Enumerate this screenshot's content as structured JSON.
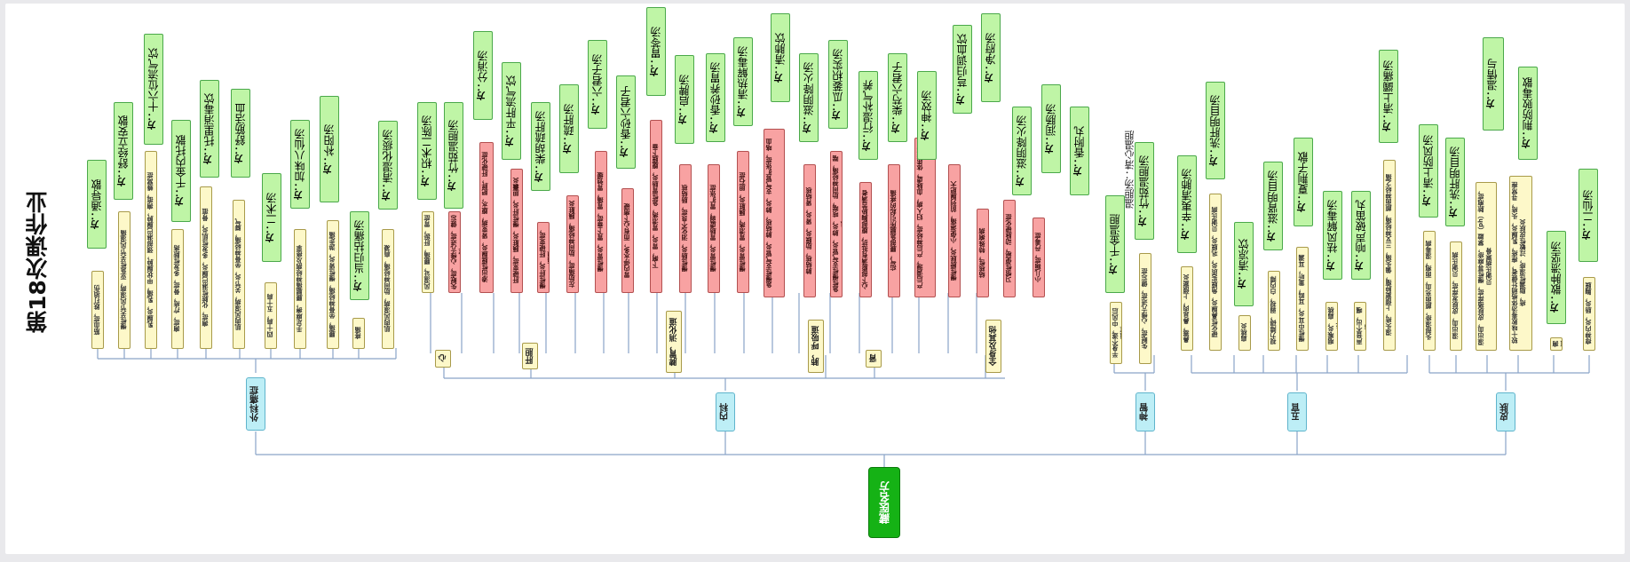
{
  "title": "第18次课作业",
  "root": "藏医名方",
  "colors": {
    "green": "#bff5a6",
    "yellow": "#fdf8c9",
    "red": "#f8a2a2",
    "blue": "#bdeef6",
    "root": "#15b215"
  },
  "categories": [
    "外科痛症",
    "内科",
    "神智",
    "五官",
    "皮肤"
  ],
  "note": "温胆汤：清心温胆",
  "yellow": [
    "筋血症，跌打损伤",
    "慢性关节风湿病，亚急性关节风湿痛",
    "乳腺炎，乳痛，甲状腺肿，颈部淋巴腺肿，痈疽，蜂窝症",
    "痈症，疔疮，骨症，多发性脓疡",
    "痈症，化脓性淋巴腺炎，多发性肌炎，骨疽",
    "肌肉风湿病，关节炎，坐骨神经痛，脚气",
    "四十肩，五十肩",
    "手足麻痹，腰腿痛神经病及痉挛",
    "腰痛，坐骨神经痛，慢性肾炎，游走痛",
    "疼痛",
    "肌肉风湿病，肋间神经痛，肩凝",
    "风湿证，腰痛，肝瘀，胃症",
    "失眠症，心悸亢进症，健忘症",
    "半身不遂，中风后遗症",
    "失眠症，心悸亢进症，健忘症",
    "鼻塞，鼻息肉，上颌窦炎",
    "硬化性鼻腺炎，角膜实质炎，巩膜炎，贝谢氏病",
    "扁桃炎",
    "视力障碍，弱视，白内障",
    "慢性中耳炎，耳鸣，重听，耳漏",
    "咽喉炎，扁桃炎",
    "声音不出，嘎声",
    "湿头疮，上颌窦肿瘤，偏头痛，三叉神经痛，颜面神经之痛",
    "头部湿疹，颜面充血，面疱，湿毒病",
    "湿出血，皮肤发痒症，贝谢氏病",
    "湿出血，皮肤搔痒症，慢性荨麻疹，掌蹠（ph）脓疱症，贝谢氏病寒骨",
    "较十味败毒汤体格稍壮健者，痤疮，乳腺炎，头疮，寻常痤疮，脂漏性湿疹，过敏性皮肤炎",
    "痈疽",
    "痱神内炎，肠炎，胸膜"
  ],
  "red": [
    "渗出性膜腺炎，肾变病，腹水，肥胖，肝硬化症",
    "肝硬变症，胰脏炎，慢性肝炎，胆囊炎",
    "慢性肝炎，肝硬变症，胰腺",
    "左肋痛症，肋间神经痛，胰脏炎",
    "慢性胃炎，胃下垂症，胃痛，胃弛缓",
    "胃内停水多，而有心下痞硬",
    "下痢，胃炎，胃溃疡，急性胃肠炎，腹膜下垂",
    "慢性肠炎，消化不良症，肠结核",
    "慢性胃炎，胃肠虚弱，胃扩张症",
    "慢性胃炎，胃溃疡，胰脏炎，胆石症",
    "急慢性支气管炎，肺结核，肺炎，支气管扩张症，咯血",
    "肺结核，肋膜炎，肾炎，肾结核",
    "急性慢性支气管炎，肺炎，咳喘，肋间神经痛，喘息",
    "心下部膨满有抵抗，腹部胸胁苦满者",
    "疝气，腰部急腿所引起的疼痛",
    "产后调理，产后神经症，妇人病，血脉虚，体质虚弱",
    "慢性膀胱炎，小便淋痛，前列腺肥大",
    "结核性，特殊痢病",
    "习惯性便秘，动脉硬化症",
    "小儿痫症，丹毒症",
    "热郁症"
  ],
  "subgroups": [
    "心",
    "肝胆",
    "脾胃，消化道",
    "肺，呼吸道",
    "肾",
    "全身及其他"
  ],
  "prescriptions": [
    "通导散",
    "舒经立安散",
    "十六位流气饮",
    "千金内托散",
    "托里消毒饮",
    "舒筋活血",
    "二术汤",
    "加味八仙汤",
    "补阳汤",
    "当归拈痛汤",
    "清湿化痰汤",
    "枳术二陈汤",
    "竹茹温胆汤",
    "分消汤",
    "平肝流气饮",
    "柴胡疏肝汤",
    "疏肝汤",
    "六君子汤",
    "香砂六君子汤",
    "胃苓汤",
    "启脾汤",
    "香砂养胃汤",
    "清热解毒汤",
    "清肺饮",
    "滋阴降火汤",
    "瓜蒌枳实汤",
    "行湿补气养血汤",
    "柴芍六君子",
    "神效汤",
    "芎归调血饮",
    "净府汤",
    "滋阴降火汤",
    "润肠汤",
    "香附丸",
    "千金温胆",
    "竹茹温胆汤",
    "辛夷清肺汤",
    "洗肝明目汤",
    "清凉饮",
    "滋肾明目汤",
    "夏荆子散",
    "祛风解毒汤",
    "响声破笛丸",
    "清上蠲痛汤",
    "清上防风汤",
    "洗肝明目汤",
    "温情与",
    "荆防败毒散",
    "散肿溃坚汤",
    "二仙汤"
  ],
  "fang_label": "方："
}
